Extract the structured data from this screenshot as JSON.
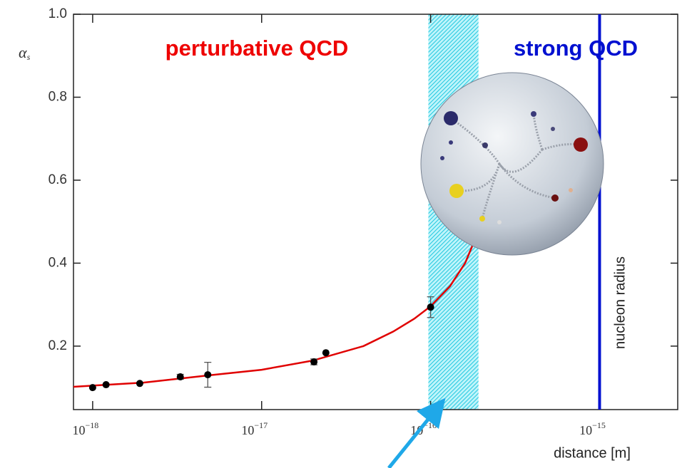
{
  "chart_data": {
    "type": "scatter",
    "xscale": "log",
    "xlim": [
      7.7e-19,
      2.9e-15
    ],
    "ylim": [
      0.047,
      1.0
    ],
    "xticks": [
      {
        "value": 1e-18,
        "label": "10",
        "exponent": "−18"
      },
      {
        "value": 1e-17,
        "label": "10",
        "exponent": "−17"
      },
      {
        "value": 1e-16,
        "label": "10",
        "exponent": "−16"
      },
      {
        "value": 1e-15,
        "label": "10",
        "exponent": "−15"
      }
    ],
    "yticks": [
      0.2,
      0.4,
      0.6,
      0.8,
      {
        "value": 1.0,
        "label": "1.0"
      }
    ],
    "x_label": "distance [m]",
    "y_label": {
      "symbol": "α",
      "subscript": "s"
    },
    "points": {
      "color": "#000000",
      "x": [
        1e-18,
        1.2e-18,
        1.9e-18,
        3.3e-18,
        4.8e-18,
        2.04e-17,
        2.4e-17,
        1e-16
      ],
      "values": [
        0.1,
        0.107,
        0.11,
        0.126,
        0.131,
        0.162,
        0.184,
        0.294
      ],
      "errors": [
        null,
        null,
        null,
        0.006,
        0.03,
        0.007,
        null,
        0.025
      ]
    },
    "fit": {
      "color": "#e00000",
      "x": [
        7.7e-19,
        2e-18,
        5e-18,
        1e-17,
        2e-17,
        4e-17,
        6e-17,
        8e-17,
        1e-16,
        1.3e-16,
        1.6e-16,
        1.8e-16
      ],
      "values": [
        0.102,
        0.112,
        0.13,
        0.143,
        0.165,
        0.2,
        0.235,
        0.266,
        0.296,
        0.344,
        0.4,
        0.45
      ]
    },
    "band": {
      "xlim": [
        9.7e-17,
        1.92e-16
      ],
      "color": "#3fdcec"
    },
    "vline": {
      "x": 1e-15,
      "label": "nucleon radius",
      "color": "#0010d0"
    },
    "annotations": [
      {
        "text": "perturbative QCD",
        "color": "#ee0000"
      },
      {
        "text": "strong QCD",
        "color": "#0010d0"
      }
    ]
  }
}
